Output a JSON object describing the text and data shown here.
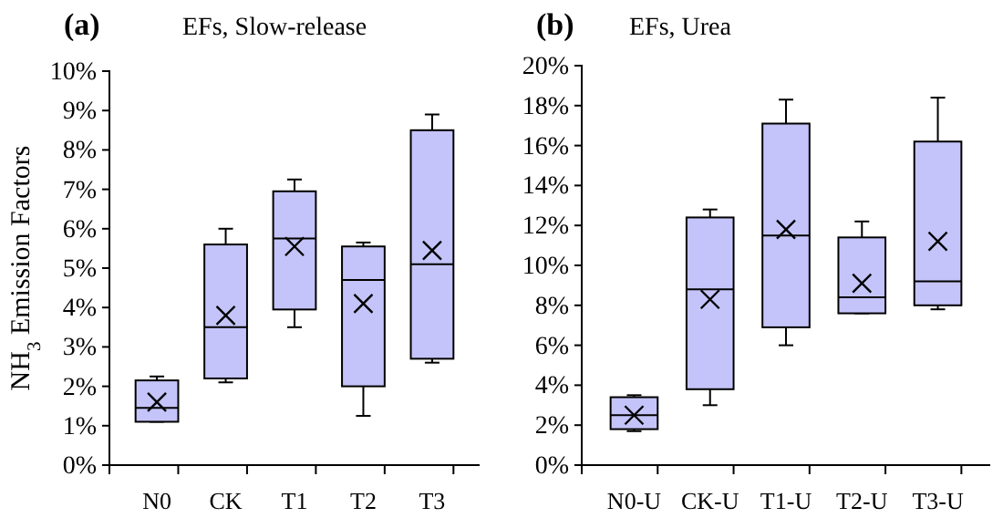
{
  "chart_data": [
    {
      "type": "box",
      "title": "EFs, Slow-release",
      "annotations": [
        "(a)"
      ],
      "ylabel": "NH$_{3}$ Emission Factors",
      "categories": [
        "N0",
        "CK",
        "T1",
        "T2",
        "T3"
      ],
      "color": "#c4c4fa",
      "ylim": [
        0,
        10
      ],
      "yticks": [
        {
          "value": 0,
          "label": "0%"
        },
        {
          "value": 1,
          "label": "1%"
        },
        {
          "value": 2,
          "label": "2%"
        },
        {
          "value": 3,
          "label": "3%"
        },
        {
          "value": 4,
          "label": "4%"
        },
        {
          "value": 5,
          "label": "5%"
        },
        {
          "value": 6,
          "label": "6%"
        },
        {
          "value": 7,
          "label": "7%"
        },
        {
          "value": 8,
          "label": "8%"
        },
        {
          "value": 9,
          "label": "9%"
        },
        {
          "value": 10,
          "label": "10%"
        }
      ],
      "marker": "cross",
      "boxes": [
        {
          "low": 1.1,
          "q1": 1.1,
          "median": 1.45,
          "q3": 2.15,
          "high": 2.25,
          "mean": 1.6
        },
        {
          "low": 2.1,
          "q1": 2.2,
          "median": 3.5,
          "q3": 5.6,
          "high": 6.0,
          "mean": 3.8
        },
        {
          "low": 3.5,
          "q1": 3.95,
          "median": 5.75,
          "q3": 6.95,
          "high": 7.25,
          "mean": 5.55
        },
        {
          "low": 1.25,
          "q1": 2.0,
          "median": 4.7,
          "q3": 5.55,
          "high": 5.65,
          "mean": 4.1
        },
        {
          "low": 2.6,
          "q1": 2.7,
          "median": 5.1,
          "q3": 8.5,
          "high": 8.9,
          "mean": 5.45
        }
      ]
    },
    {
      "type": "box",
      "title": "EFs, Urea",
      "annotations": [
        "(b)"
      ],
      "categories": [
        "N0-U",
        "CK-U",
        "T1-U",
        "T2-U",
        "T3-U"
      ],
      "color": "#c4c4fa",
      "ylim": [
        0,
        20
      ],
      "yticks": [
        {
          "value": 0,
          "label": "0%"
        },
        {
          "value": 2,
          "label": "2%"
        },
        {
          "value": 4,
          "label": "4%"
        },
        {
          "value": 6,
          "label": "6%"
        },
        {
          "value": 8,
          "label": "8%"
        },
        {
          "value": 10,
          "label": "10%"
        },
        {
          "value": 12,
          "label": "12%"
        },
        {
          "value": 14,
          "label": "14%"
        },
        {
          "value": 16,
          "label": "16%"
        },
        {
          "value": 18,
          "label": "18%"
        },
        {
          "value": 20,
          "label": "20%"
        }
      ],
      "marker": "cross",
      "boxes": [
        {
          "low": 1.7,
          "q1": 1.8,
          "median": 2.5,
          "q3": 3.4,
          "high": 3.5,
          "mean": 2.5
        },
        {
          "low": 3.0,
          "q1": 3.8,
          "median": 8.8,
          "q3": 12.4,
          "high": 12.8,
          "mean": 8.3
        },
        {
          "low": 6.0,
          "q1": 6.9,
          "median": 11.5,
          "q3": 17.1,
          "high": 18.3,
          "mean": 11.8
        },
        {
          "low": 7.6,
          "q1": 7.6,
          "median": 8.4,
          "q3": 11.4,
          "high": 12.2,
          "mean": 9.1
        },
        {
          "low": 7.8,
          "q1": 8.0,
          "median": 9.2,
          "q3": 16.2,
          "high": 18.4,
          "mean": 11.2
        }
      ]
    }
  ]
}
